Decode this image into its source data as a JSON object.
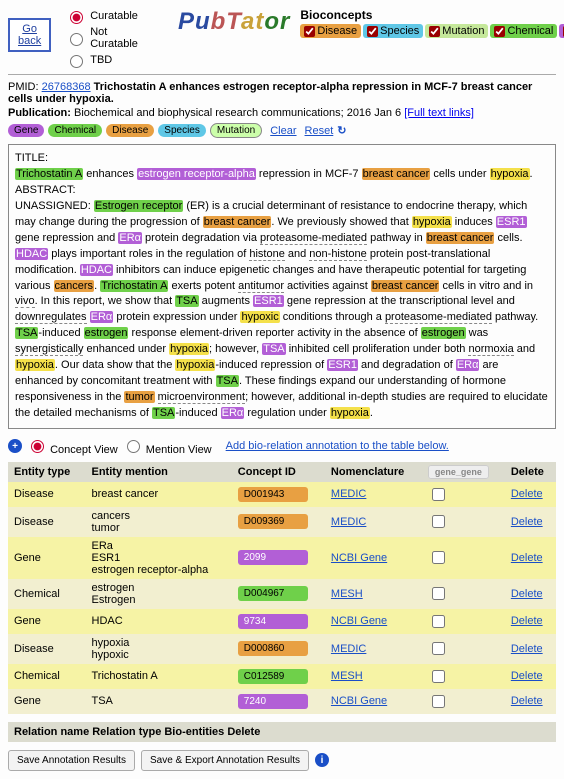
{
  "colors": {
    "disease": "#e8a042",
    "species": "#5fc7e6",
    "mutation": "#c5e89a",
    "chemical": "#6fd04a",
    "gene": "#b25fd6",
    "highlight_yellow": "#f4e04a",
    "link": "#1a4fc7",
    "table_header": "#dcdccf",
    "row_yellow": "#f6f3a5",
    "row_cream": "#f2efd0"
  },
  "top": {
    "go_back": "Go back",
    "radios": {
      "curatable": "Curatable",
      "not_curatable": "Not Curatable",
      "tbd": "TBD"
    },
    "brand": {
      "pu": "Pu",
      "bt": "bT",
      "at": "at",
      "or": "or"
    },
    "bioconcepts_title": "Bioconcepts",
    "bioconcepts": {
      "disease": "Disease",
      "species": "Species",
      "mutation": "Mutation",
      "chemical": "Chemical",
      "gene": "Gene"
    }
  },
  "header": {
    "pmid_label": "PMID:",
    "pmid": "26768368",
    "title": "Trichostatin A enhances estrogen receptor-alpha repression in MCF-7 breast cancer cells under hypoxia.",
    "pub_label": "Publication:",
    "pub_text": "Biochemical and biophysical research communications; 2016 Jan 6 ",
    "full_text": "[Full text links]",
    "pills": {
      "gene": "Gene",
      "chemical": "Chemical",
      "disease": "Disease",
      "species": "Species",
      "mutation": "Mutation"
    },
    "clear": "Clear",
    "reset": "Reset"
  },
  "article": {
    "title_label": "TITLE:",
    "abstract_label": "ABSTRACT:",
    "unassigned_label": "UNASSIGNED:",
    "title_frags": {
      "t1": "Trichostatin A",
      "t2": " enhances ",
      "t3": "estrogen receptor-alpha",
      "t4": " repression in MCF-7 ",
      "t5": "breast cancer",
      "t6": " cells under ",
      "t7": "hypoxia",
      "t8": "."
    },
    "body_frags": {
      "b1": "Estrogen receptor",
      "b2": " (ER) is a crucial determinant of resistance to endocrine therapy, which may change during the progression of ",
      "b3": "breast cancer",
      "b4": ". We previously showed that ",
      "b5": "hypoxia",
      "b6": " induces ",
      "b7": "ESR1",
      "b8": " gene repression and ",
      "b9": "ERα",
      "b10": " protein degradation via ",
      "b11": "proteasome-mediated",
      "b12": " pathway in ",
      "b13": "breast cancer",
      "b14": " cells. ",
      "b15": "HDAC",
      "b16": " plays important roles in the regulation of ",
      "b17": "histone",
      "b18": " and ",
      "b19": "non-histone",
      "b20": " protein post-translational modification. ",
      "b21": "HDAC",
      "b22": " inhibitors can induce epigenetic changes and have therapeutic potential for targeting various ",
      "b23": "cancers",
      "b24": ". ",
      "b25": "Trichostatin A",
      "b26": " exerts potent ",
      "b27": "antitumor",
      "b28": " activities against ",
      "b29": "breast cancer",
      "b30": " cells in vitro and in ",
      "b31": "vivo",
      "b32": ". In this report, we show that ",
      "b33": "TSA",
      "b34": " augments ",
      "b35": "ESR1",
      "b36": " gene repression at the transcriptional level and ",
      "b37": "downregulates",
      "b38": " ",
      "b39": "ERα",
      "b40": " protein expression under ",
      "b41": "hypoxic",
      "b42": " conditions through a ",
      "b43": "proteasome-mediated",
      "b44": " pathway. ",
      "b45": "TSA",
      "b46": "-induced ",
      "b47": "estrogen",
      "b48": " response element-driven reporter activity in the absence of ",
      "b49": "estrogen",
      "b50": " was ",
      "b51": "synergistically",
      "b52": " enhanced under ",
      "b53": "hypoxia",
      "b54": "; however, ",
      "b55": "TSA",
      "b56": " inhibited cell proliferation under both ",
      "b57": "normoxia",
      "b58": " and ",
      "b59": "hypoxia",
      "b60": ". Our data show that the ",
      "b61": "hypoxia",
      "b62": "-induced repression of ",
      "b63": "ESR1",
      "b64": " and degradation of ",
      "b65": "ERα",
      "b66": " are enhanced by concomitant treatment with ",
      "b67": "TSA",
      "b68": ". These findings expand our understanding of hormone responsiveness in the ",
      "b69": "tumor",
      "b70": " ",
      "b71": "microenvironment",
      "b72": "; however, additional in-depth studies are required to elucidate the detailed mechanisms of ",
      "b73": "TSA",
      "b74": "-induced ",
      "b75": "ERα",
      "b76": " regulation under ",
      "b77": "hypoxia",
      "b78": "."
    }
  },
  "viewrow": {
    "concept_view": "Concept View",
    "mention_view": "Mention View",
    "add_relation": "Add bio-relation annotation to the table below."
  },
  "table": {
    "headers": {
      "entity_type": "Entity type",
      "entity_mention": "Entity mention",
      "concept_id": "Concept ID",
      "nomenclature": "Nomenclature",
      "gene_gene": "gene_gene",
      "delete": "Delete"
    },
    "rows": [
      {
        "type": "Disease",
        "type_class": "dis",
        "mention": "breast cancer",
        "cid": "D001943",
        "nomen": "MEDIC",
        "row": "yellow"
      },
      {
        "type": "Disease",
        "type_class": "dis",
        "mention": "cancers\ntumor",
        "cid": "D009369",
        "nomen": "MEDIC",
        "row": "cream"
      },
      {
        "type": "Gene",
        "type_class": "gene",
        "mention": "ERa\nESR1\nestrogen receptor-alpha",
        "cid": "2099",
        "nomen": "NCBI Gene",
        "row": "yellow"
      },
      {
        "type": "Chemical",
        "type_class": "chem",
        "mention": "estrogen\nEstrogen",
        "cid": "D004967",
        "nomen": "MESH",
        "row": "cream"
      },
      {
        "type": "Gene",
        "type_class": "gene",
        "mention": "HDAC",
        "cid": "9734",
        "nomen": "NCBI Gene",
        "row": "yellow"
      },
      {
        "type": "Disease",
        "type_class": "dis",
        "mention": "hypoxia\nhypoxic",
        "cid": "D000860",
        "nomen": "MEDIC",
        "row": "cream"
      },
      {
        "type": "Chemical",
        "type_class": "chem",
        "mention": "Trichostatin A",
        "cid": "C012589",
        "nomen": "MESH",
        "row": "yellow"
      },
      {
        "type": "Gene",
        "type_class": "gene",
        "mention": "TSA",
        "cid": "7240",
        "nomen": "NCBI Gene",
        "row": "cream"
      }
    ],
    "delete_label": "Delete"
  },
  "relations": {
    "header": "Relation name Relation type Bio-entities Delete"
  },
  "buttons": {
    "save": "Save Annotation Results",
    "save_export": "Save & Export Annotation Results"
  }
}
